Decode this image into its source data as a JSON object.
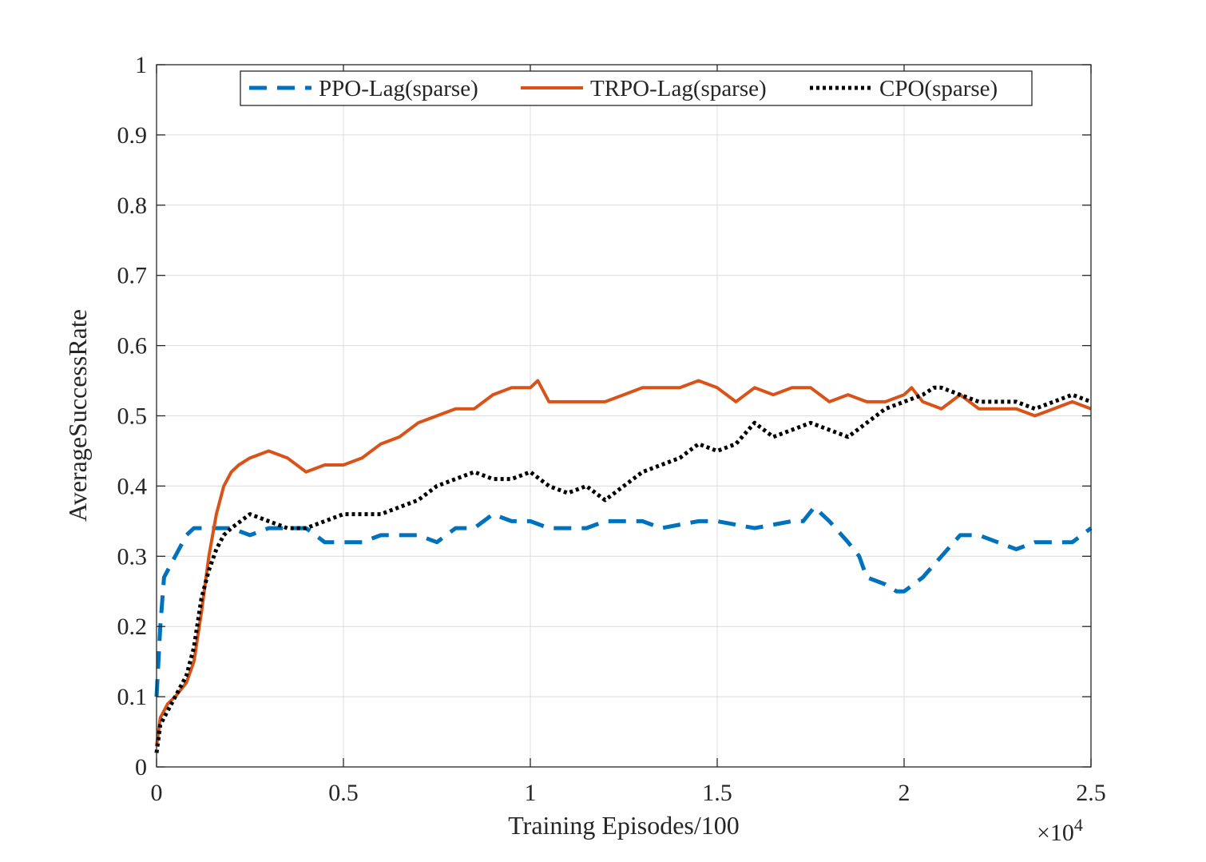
{
  "chart_data": {
    "type": "line",
    "xlabel": "Training Episodes/100",
    "ylabel": "AverageSuccessRate",
    "x_multiplier_label": "×10",
    "x_multiplier_exponent": "4",
    "xlim": [
      0,
      2.5
    ],
    "ylim": [
      0,
      1
    ],
    "x_ticks": [
      0,
      0.5,
      1,
      1.5,
      2,
      2.5
    ],
    "x_tick_labels": [
      "0",
      "0.5",
      "1",
      "1.5",
      "2",
      "2.5"
    ],
    "y_ticks": [
      0,
      0.1,
      0.2,
      0.3,
      0.4,
      0.5,
      0.6,
      0.7,
      0.8,
      0.9,
      1
    ],
    "y_tick_labels": [
      "0",
      "0.1",
      "0.2",
      "0.3",
      "0.4",
      "0.5",
      "0.6",
      "0.7",
      "0.8",
      "0.9",
      "1"
    ],
    "grid": true,
    "legend_position": "top",
    "series": [
      {
        "name": "PPO-Lag(sparse)",
        "color": "#0072BD",
        "style": "dashed",
        "points": [
          [
            0,
            0.1
          ],
          [
            0.01,
            0.2
          ],
          [
            0.02,
            0.27
          ],
          [
            0.04,
            0.29
          ],
          [
            0.06,
            0.31
          ],
          [
            0.08,
            0.33
          ],
          [
            0.1,
            0.34
          ],
          [
            0.2,
            0.34
          ],
          [
            0.25,
            0.33
          ],
          [
            0.3,
            0.34
          ],
          [
            0.4,
            0.34
          ],
          [
            0.45,
            0.32
          ],
          [
            0.55,
            0.32
          ],
          [
            0.6,
            0.33
          ],
          [
            0.7,
            0.33
          ],
          [
            0.75,
            0.32
          ],
          [
            0.8,
            0.34
          ],
          [
            0.85,
            0.34
          ],
          [
            0.9,
            0.36
          ],
          [
            0.95,
            0.35
          ],
          [
            1.0,
            0.35
          ],
          [
            1.05,
            0.34
          ],
          [
            1.15,
            0.34
          ],
          [
            1.2,
            0.35
          ],
          [
            1.3,
            0.35
          ],
          [
            1.35,
            0.34
          ],
          [
            1.45,
            0.35
          ],
          [
            1.5,
            0.35
          ],
          [
            1.6,
            0.34
          ],
          [
            1.7,
            0.35
          ],
          [
            1.73,
            0.35
          ],
          [
            1.76,
            0.37
          ],
          [
            1.8,
            0.35
          ],
          [
            1.85,
            0.32
          ],
          [
            1.88,
            0.3
          ],
          [
            1.9,
            0.27
          ],
          [
            1.95,
            0.26
          ],
          [
            1.98,
            0.25
          ],
          [
            2.0,
            0.25
          ],
          [
            2.05,
            0.27
          ],
          [
            2.1,
            0.3
          ],
          [
            2.15,
            0.33
          ],
          [
            2.2,
            0.33
          ],
          [
            2.25,
            0.32
          ],
          [
            2.3,
            0.31
          ],
          [
            2.35,
            0.32
          ],
          [
            2.45,
            0.32
          ],
          [
            2.5,
            0.34
          ]
        ]
      },
      {
        "name": "TRPO-Lag(sparse)",
        "color": "#D95319",
        "style": "solid",
        "points": [
          [
            0,
            0.03
          ],
          [
            0.01,
            0.07
          ],
          [
            0.03,
            0.09
          ],
          [
            0.05,
            0.1
          ],
          [
            0.08,
            0.12
          ],
          [
            0.1,
            0.15
          ],
          [
            0.12,
            0.22
          ],
          [
            0.14,
            0.3
          ],
          [
            0.16,
            0.36
          ],
          [
            0.18,
            0.4
          ],
          [
            0.2,
            0.42
          ],
          [
            0.22,
            0.43
          ],
          [
            0.25,
            0.44
          ],
          [
            0.3,
            0.45
          ],
          [
            0.35,
            0.44
          ],
          [
            0.4,
            0.42
          ],
          [
            0.45,
            0.43
          ],
          [
            0.5,
            0.43
          ],
          [
            0.55,
            0.44
          ],
          [
            0.6,
            0.46
          ],
          [
            0.65,
            0.47
          ],
          [
            0.7,
            0.49
          ],
          [
            0.75,
            0.5
          ],
          [
            0.8,
            0.51
          ],
          [
            0.85,
            0.51
          ],
          [
            0.9,
            0.53
          ],
          [
            0.95,
            0.54
          ],
          [
            1.0,
            0.54
          ],
          [
            1.02,
            0.55
          ],
          [
            1.05,
            0.52
          ],
          [
            1.1,
            0.52
          ],
          [
            1.2,
            0.52
          ],
          [
            1.25,
            0.53
          ],
          [
            1.3,
            0.54
          ],
          [
            1.4,
            0.54
          ],
          [
            1.45,
            0.55
          ],
          [
            1.5,
            0.54
          ],
          [
            1.55,
            0.52
          ],
          [
            1.6,
            0.54
          ],
          [
            1.65,
            0.53
          ],
          [
            1.7,
            0.54
          ],
          [
            1.75,
            0.54
          ],
          [
            1.8,
            0.52
          ],
          [
            1.85,
            0.53
          ],
          [
            1.9,
            0.52
          ],
          [
            1.95,
            0.52
          ],
          [
            2.0,
            0.53
          ],
          [
            2.02,
            0.54
          ],
          [
            2.05,
            0.52
          ],
          [
            2.1,
            0.51
          ],
          [
            2.15,
            0.53
          ],
          [
            2.2,
            0.51
          ],
          [
            2.3,
            0.51
          ],
          [
            2.35,
            0.5
          ],
          [
            2.4,
            0.51
          ],
          [
            2.45,
            0.52
          ],
          [
            2.5,
            0.51
          ]
        ]
      },
      {
        "name": "CPO(sparse)",
        "color": "#000000",
        "style": "dotted",
        "points": [
          [
            0,
            0.02
          ],
          [
            0.01,
            0.06
          ],
          [
            0.03,
            0.08
          ],
          [
            0.05,
            0.1
          ],
          [
            0.08,
            0.13
          ],
          [
            0.1,
            0.17
          ],
          [
            0.12,
            0.24
          ],
          [
            0.14,
            0.28
          ],
          [
            0.16,
            0.31
          ],
          [
            0.18,
            0.33
          ],
          [
            0.2,
            0.34
          ],
          [
            0.25,
            0.36
          ],
          [
            0.3,
            0.35
          ],
          [
            0.35,
            0.34
          ],
          [
            0.4,
            0.34
          ],
          [
            0.45,
            0.35
          ],
          [
            0.5,
            0.36
          ],
          [
            0.55,
            0.36
          ],
          [
            0.6,
            0.36
          ],
          [
            0.65,
            0.37
          ],
          [
            0.7,
            0.38
          ],
          [
            0.75,
            0.4
          ],
          [
            0.8,
            0.41
          ],
          [
            0.85,
            0.42
          ],
          [
            0.9,
            0.41
          ],
          [
            0.95,
            0.41
          ],
          [
            1.0,
            0.42
          ],
          [
            1.05,
            0.4
          ],
          [
            1.1,
            0.39
          ],
          [
            1.15,
            0.4
          ],
          [
            1.2,
            0.38
          ],
          [
            1.25,
            0.4
          ],
          [
            1.3,
            0.42
          ],
          [
            1.35,
            0.43
          ],
          [
            1.4,
            0.44
          ],
          [
            1.45,
            0.46
          ],
          [
            1.5,
            0.45
          ],
          [
            1.55,
            0.46
          ],
          [
            1.6,
            0.49
          ],
          [
            1.65,
            0.47
          ],
          [
            1.7,
            0.48
          ],
          [
            1.75,
            0.49
          ],
          [
            1.8,
            0.48
          ],
          [
            1.85,
            0.47
          ],
          [
            1.9,
            0.49
          ],
          [
            1.95,
            0.51
          ],
          [
            2.0,
            0.52
          ],
          [
            2.05,
            0.53
          ],
          [
            2.08,
            0.54
          ],
          [
            2.1,
            0.54
          ],
          [
            2.15,
            0.53
          ],
          [
            2.2,
            0.52
          ],
          [
            2.25,
            0.52
          ],
          [
            2.3,
            0.52
          ],
          [
            2.35,
            0.51
          ],
          [
            2.4,
            0.52
          ],
          [
            2.45,
            0.53
          ],
          [
            2.5,
            0.52
          ]
        ]
      }
    ]
  }
}
